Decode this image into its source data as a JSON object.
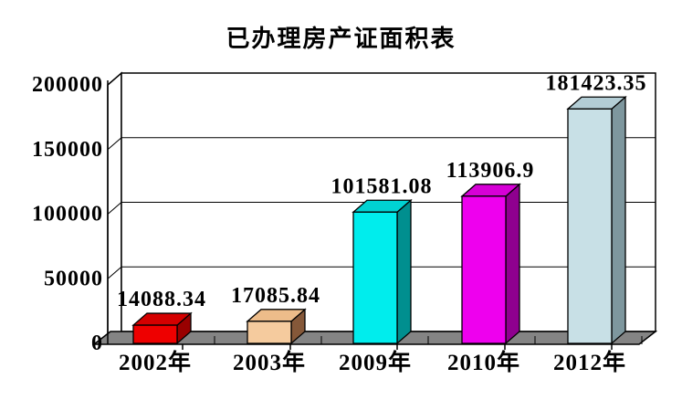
{
  "chart_data": {
    "type": "bar",
    "style": "3d-column",
    "title": "已办理房产证面积表",
    "categories": [
      "2002年",
      "2003年",
      "2009年",
      "2010年",
      "2012年"
    ],
    "values": [
      14088.34,
      17085.84,
      101581.08,
      113906.9,
      181423.35
    ],
    "value_labels": [
      "14088.34",
      "17085.84",
      "101581.08",
      "113906.9",
      "181423.35"
    ],
    "xlabel": "",
    "ylabel": "",
    "ylim": [
      0,
      200000
    ],
    "ytick_interval": 50000,
    "ytick_labels": [
      "0",
      "50000",
      "100000",
      "150000",
      "200000"
    ],
    "grid": true,
    "legend": false,
    "colors": {
      "bars": [
        {
          "front": "#EE0000",
          "top": "#D40000",
          "side": "#990000"
        },
        {
          "front": "#F5CB9E",
          "top": "#EDBC8A",
          "side": "#855839"
        },
        {
          "front": "#00EDED",
          "top": "#00D2D2",
          "side": "#008F8F"
        },
        {
          "front": "#EE00EE",
          "top": "#D600D6",
          "side": "#8F008F"
        },
        {
          "front": "#C8E0E6",
          "top": "#B3CDD5",
          "side": "#7E979E"
        }
      ],
      "floor": "#848484",
      "wall": "#FFFFFF",
      "axis": "#000000",
      "text": "#000000",
      "background": "#FFFFFF"
    }
  }
}
